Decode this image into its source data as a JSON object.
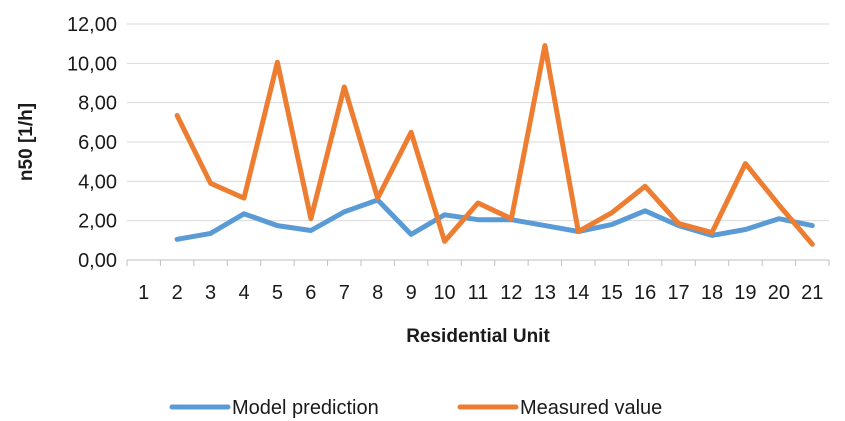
{
  "chart_data": {
    "type": "line",
    "title": "",
    "xlabel": "Residential Unit",
    "ylabel": "n50 [1/h]",
    "ylim": [
      0,
      12
    ],
    "y_ticks": [
      0,
      2,
      4,
      6,
      8,
      10,
      12
    ],
    "y_tick_labels": [
      "0,00",
      "2,00",
      "4,00",
      "6,00",
      "8,00",
      "10,00",
      "12,00"
    ],
    "categories": [
      "1",
      "2",
      "3",
      "4",
      "5",
      "6",
      "7",
      "8",
      "9",
      "10",
      "11",
      "12",
      "13",
      "14",
      "15",
      "16",
      "17",
      "18",
      "19",
      "20",
      "21"
    ],
    "grid": "horizontal",
    "legend_position": "bottom",
    "series": [
      {
        "name": "Model prediction",
        "color": "#5b9bd5",
        "values": [
          null,
          1.05,
          1.35,
          2.35,
          1.75,
          1.5,
          2.45,
          3.05,
          1.3,
          2.3,
          2.05,
          2.05,
          1.75,
          1.45,
          1.8,
          2.5,
          1.75,
          1.25,
          1.55,
          2.1,
          1.75
        ]
      },
      {
        "name": "Measured value",
        "color": "#ed7d31",
        "values": [
          null,
          7.35,
          3.9,
          3.15,
          10.05,
          2.1,
          8.8,
          3.15,
          6.5,
          0.95,
          2.9,
          2.1,
          10.9,
          1.45,
          2.4,
          3.75,
          1.85,
          1.4,
          4.9,
          2.8,
          0.8
        ]
      }
    ]
  }
}
